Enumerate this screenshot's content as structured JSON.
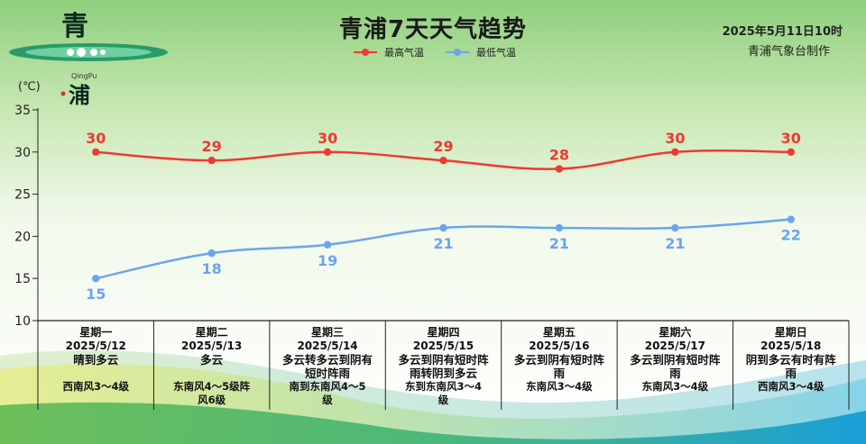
{
  "header": {
    "title": "青浦7天天气趋势",
    "issue_time": "2025年5月11日10时",
    "issuer": "青浦气象台制作",
    "unit_label": "(℃)",
    "logo": {
      "top_char": "青",
      "pinyin": "QingPu",
      "bottom_char": "浦"
    }
  },
  "colors": {
    "high": "#ee3a30",
    "low": "#6ba4ee",
    "axis": "#222222"
  },
  "chart_data": {
    "type": "line",
    "categories": [
      "星期一",
      "星期二",
      "星期三",
      "星期四",
      "星期五",
      "星期六",
      "星期日"
    ],
    "ylim": [
      10,
      35
    ],
    "yticks": [
      10,
      15,
      20,
      25,
      30,
      35
    ],
    "legend_position": "top-center",
    "series": [
      {
        "name": "最高气温",
        "values": [
          30,
          29,
          30,
          29,
          28,
          30,
          30
        ]
      },
      {
        "name": "最低气温",
        "values": [
          15,
          18,
          19,
          21,
          21,
          21,
          22
        ]
      }
    ]
  },
  "days": [
    {
      "weekday": "星期一",
      "date": "2025/5/12",
      "weather": [
        "晴到多云"
      ],
      "wind": [
        "西南风3～4级"
      ]
    },
    {
      "weekday": "星期二",
      "date": "2025/5/13",
      "weather": [
        "多云"
      ],
      "wind": [
        "东南风4～5级阵",
        "风6级"
      ]
    },
    {
      "weekday": "星期三",
      "date": "2025/5/14",
      "weather": [
        "多云转多云到阴有",
        "短时阵雨"
      ],
      "wind": [
        "南到东南风4～5",
        "级"
      ]
    },
    {
      "weekday": "星期四",
      "date": "2025/5/15",
      "weather": [
        "多云到阴有短时阵",
        "雨转阴到多云"
      ],
      "wind": [
        "东到东南风3～4",
        "级"
      ]
    },
    {
      "weekday": "星期五",
      "date": "2025/5/16",
      "weather": [
        "多云到阴有短时阵",
        "雨"
      ],
      "wind": [
        "东南风3～4级"
      ]
    },
    {
      "weekday": "星期六",
      "date": "2025/5/17",
      "weather": [
        "多云到阴有短时阵",
        "雨"
      ],
      "wind": [
        "东南风3～4级"
      ]
    },
    {
      "weekday": "星期日",
      "date": "2025/5/18",
      "weather": [
        "阴到多云有时有阵",
        "雨"
      ],
      "wind": [
        "西南风3～4级"
      ]
    }
  ]
}
